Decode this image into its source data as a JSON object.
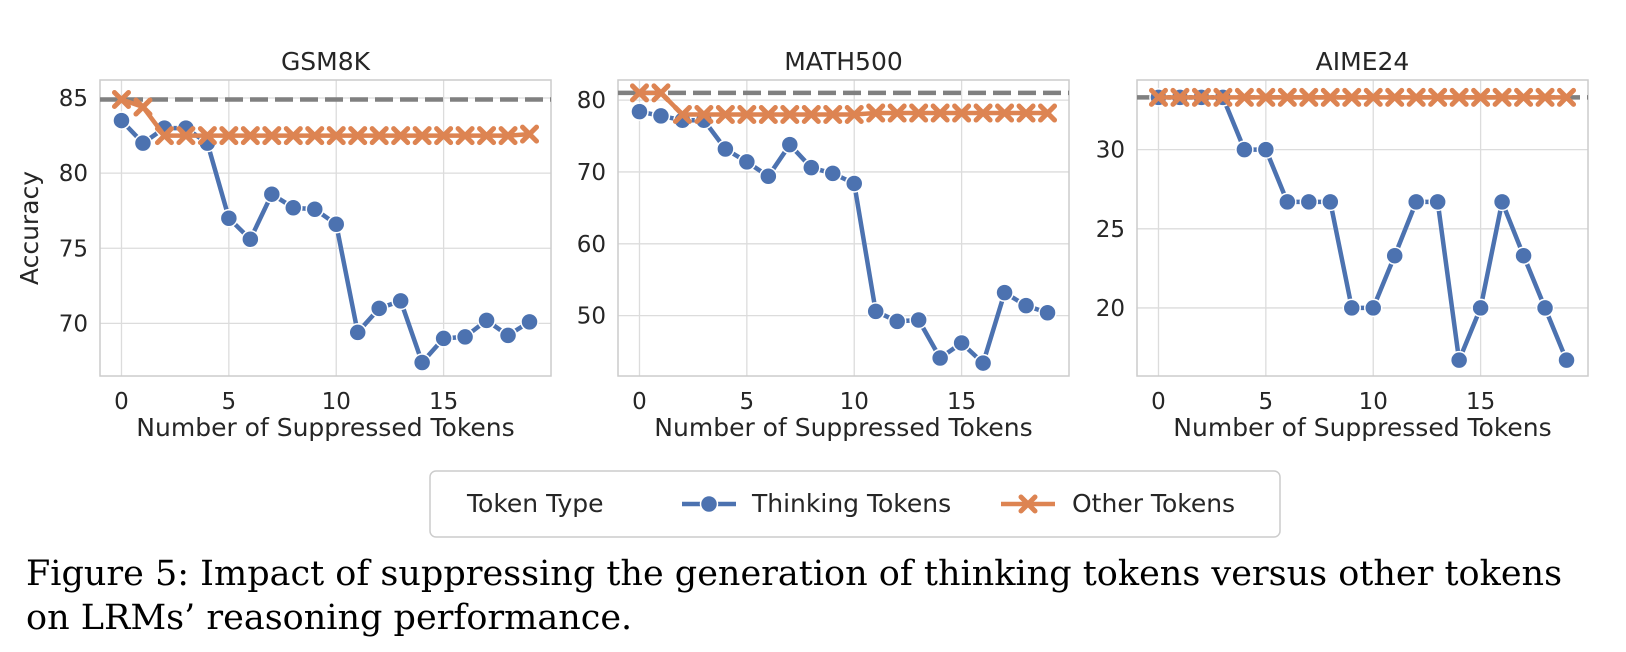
{
  "chart_data": [
    {
      "type": "line",
      "title": "GSM8K",
      "xlabel": "Number of Suppressed Tokens",
      "ylabel": "Accuracy",
      "xlim": [
        -1,
        20
      ],
      "ylim": [
        66.5,
        86.2
      ],
      "xticks": [
        0,
        5,
        10,
        15
      ],
      "yticks": [
        70,
        75,
        80,
        85
      ],
      "baseline": 84.9,
      "grid": true,
      "x": [
        0,
        1,
        2,
        3,
        4,
        5,
        6,
        7,
        8,
        9,
        10,
        11,
        12,
        13,
        14,
        15,
        16,
        17,
        18,
        19
      ],
      "series": [
        {
          "name": "Thinking Tokens",
          "values": [
            83.5,
            82.0,
            83.0,
            83.0,
            82.0,
            77.0,
            75.6,
            78.6,
            77.7,
            77.6,
            76.6,
            69.4,
            71.0,
            71.5,
            67.4,
            69.0,
            69.1,
            70.2,
            69.2,
            70.1
          ]
        },
        {
          "name": "Other Tokens",
          "values": [
            84.9,
            84.4,
            82.5,
            82.5,
            82.5,
            82.5,
            82.5,
            82.5,
            82.5,
            82.5,
            82.5,
            82.5,
            82.5,
            82.5,
            82.5,
            82.5,
            82.5,
            82.5,
            82.5,
            82.6
          ]
        }
      ]
    },
    {
      "type": "line",
      "title": "MATH500",
      "xlabel": "Number of Suppressed Tokens",
      "ylabel": "",
      "xlim": [
        -1,
        20
      ],
      "ylim": [
        41.6,
        82.8
      ],
      "xticks": [
        0,
        5,
        10,
        15
      ],
      "yticks": [
        50,
        60,
        70,
        80
      ],
      "baseline": 81.0,
      "grid": true,
      "x": [
        0,
        1,
        2,
        3,
        4,
        5,
        6,
        7,
        8,
        9,
        10,
        11,
        12,
        13,
        14,
        15,
        16,
        17,
        18,
        19
      ],
      "series": [
        {
          "name": "Thinking Tokens",
          "values": [
            78.4,
            77.8,
            77.2,
            77.2,
            73.2,
            71.4,
            69.4,
            73.8,
            70.6,
            69.8,
            68.4,
            50.6,
            49.2,
            49.4,
            44.1,
            46.2,
            43.4,
            53.2,
            51.4,
            50.4
          ]
        },
        {
          "name": "Other Tokens",
          "values": [
            81.0,
            81.0,
            78.0,
            78.0,
            78.0,
            78.0,
            78.0,
            78.0,
            78.0,
            78.0,
            78.0,
            78.2,
            78.2,
            78.2,
            78.2,
            78.2,
            78.2,
            78.2,
            78.2,
            78.2
          ]
        }
      ]
    },
    {
      "type": "line",
      "title": "AIME24",
      "xlabel": "Number of Suppressed Tokens",
      "ylabel": "",
      "xlim": [
        -1,
        20
      ],
      "ylim": [
        15.7,
        34.4
      ],
      "xticks": [
        0,
        5,
        10,
        15
      ],
      "yticks": [
        20,
        25,
        30
      ],
      "baseline": 33.3,
      "grid": true,
      "x": [
        0,
        1,
        2,
        3,
        4,
        5,
        6,
        7,
        8,
        9,
        10,
        11,
        12,
        13,
        14,
        15,
        16,
        17,
        18,
        19
      ],
      "series": [
        {
          "name": "Thinking Tokens",
          "values": [
            33.3,
            33.3,
            33.3,
            33.3,
            30.0,
            30.0,
            26.7,
            26.7,
            26.7,
            20.0,
            20.0,
            23.3,
            26.7,
            26.7,
            16.7,
            20.0,
            26.7,
            23.3,
            20.0,
            16.7
          ]
        },
        {
          "name": "Other Tokens",
          "values": [
            33.3,
            33.3,
            33.3,
            33.3,
            33.3,
            33.3,
            33.3,
            33.3,
            33.3,
            33.3,
            33.3,
            33.3,
            33.3,
            33.3,
            33.3,
            33.3,
            33.3,
            33.3,
            33.3,
            33.3
          ]
        }
      ]
    }
  ],
  "legend": {
    "title": "Token Type",
    "placement": "bottom-center",
    "entries": [
      "Thinking Tokens",
      "Other Tokens"
    ]
  },
  "colors": {
    "thinking": "#4c72b0",
    "other": "#dd8452",
    "baseline": "#808080",
    "grid": "#dcdcdc",
    "axes": "#cccccc"
  },
  "caption": "Figure 5: Impact of suppressing the generation of thinking tokens versus other tokens on LRMs’ reasoning performance."
}
